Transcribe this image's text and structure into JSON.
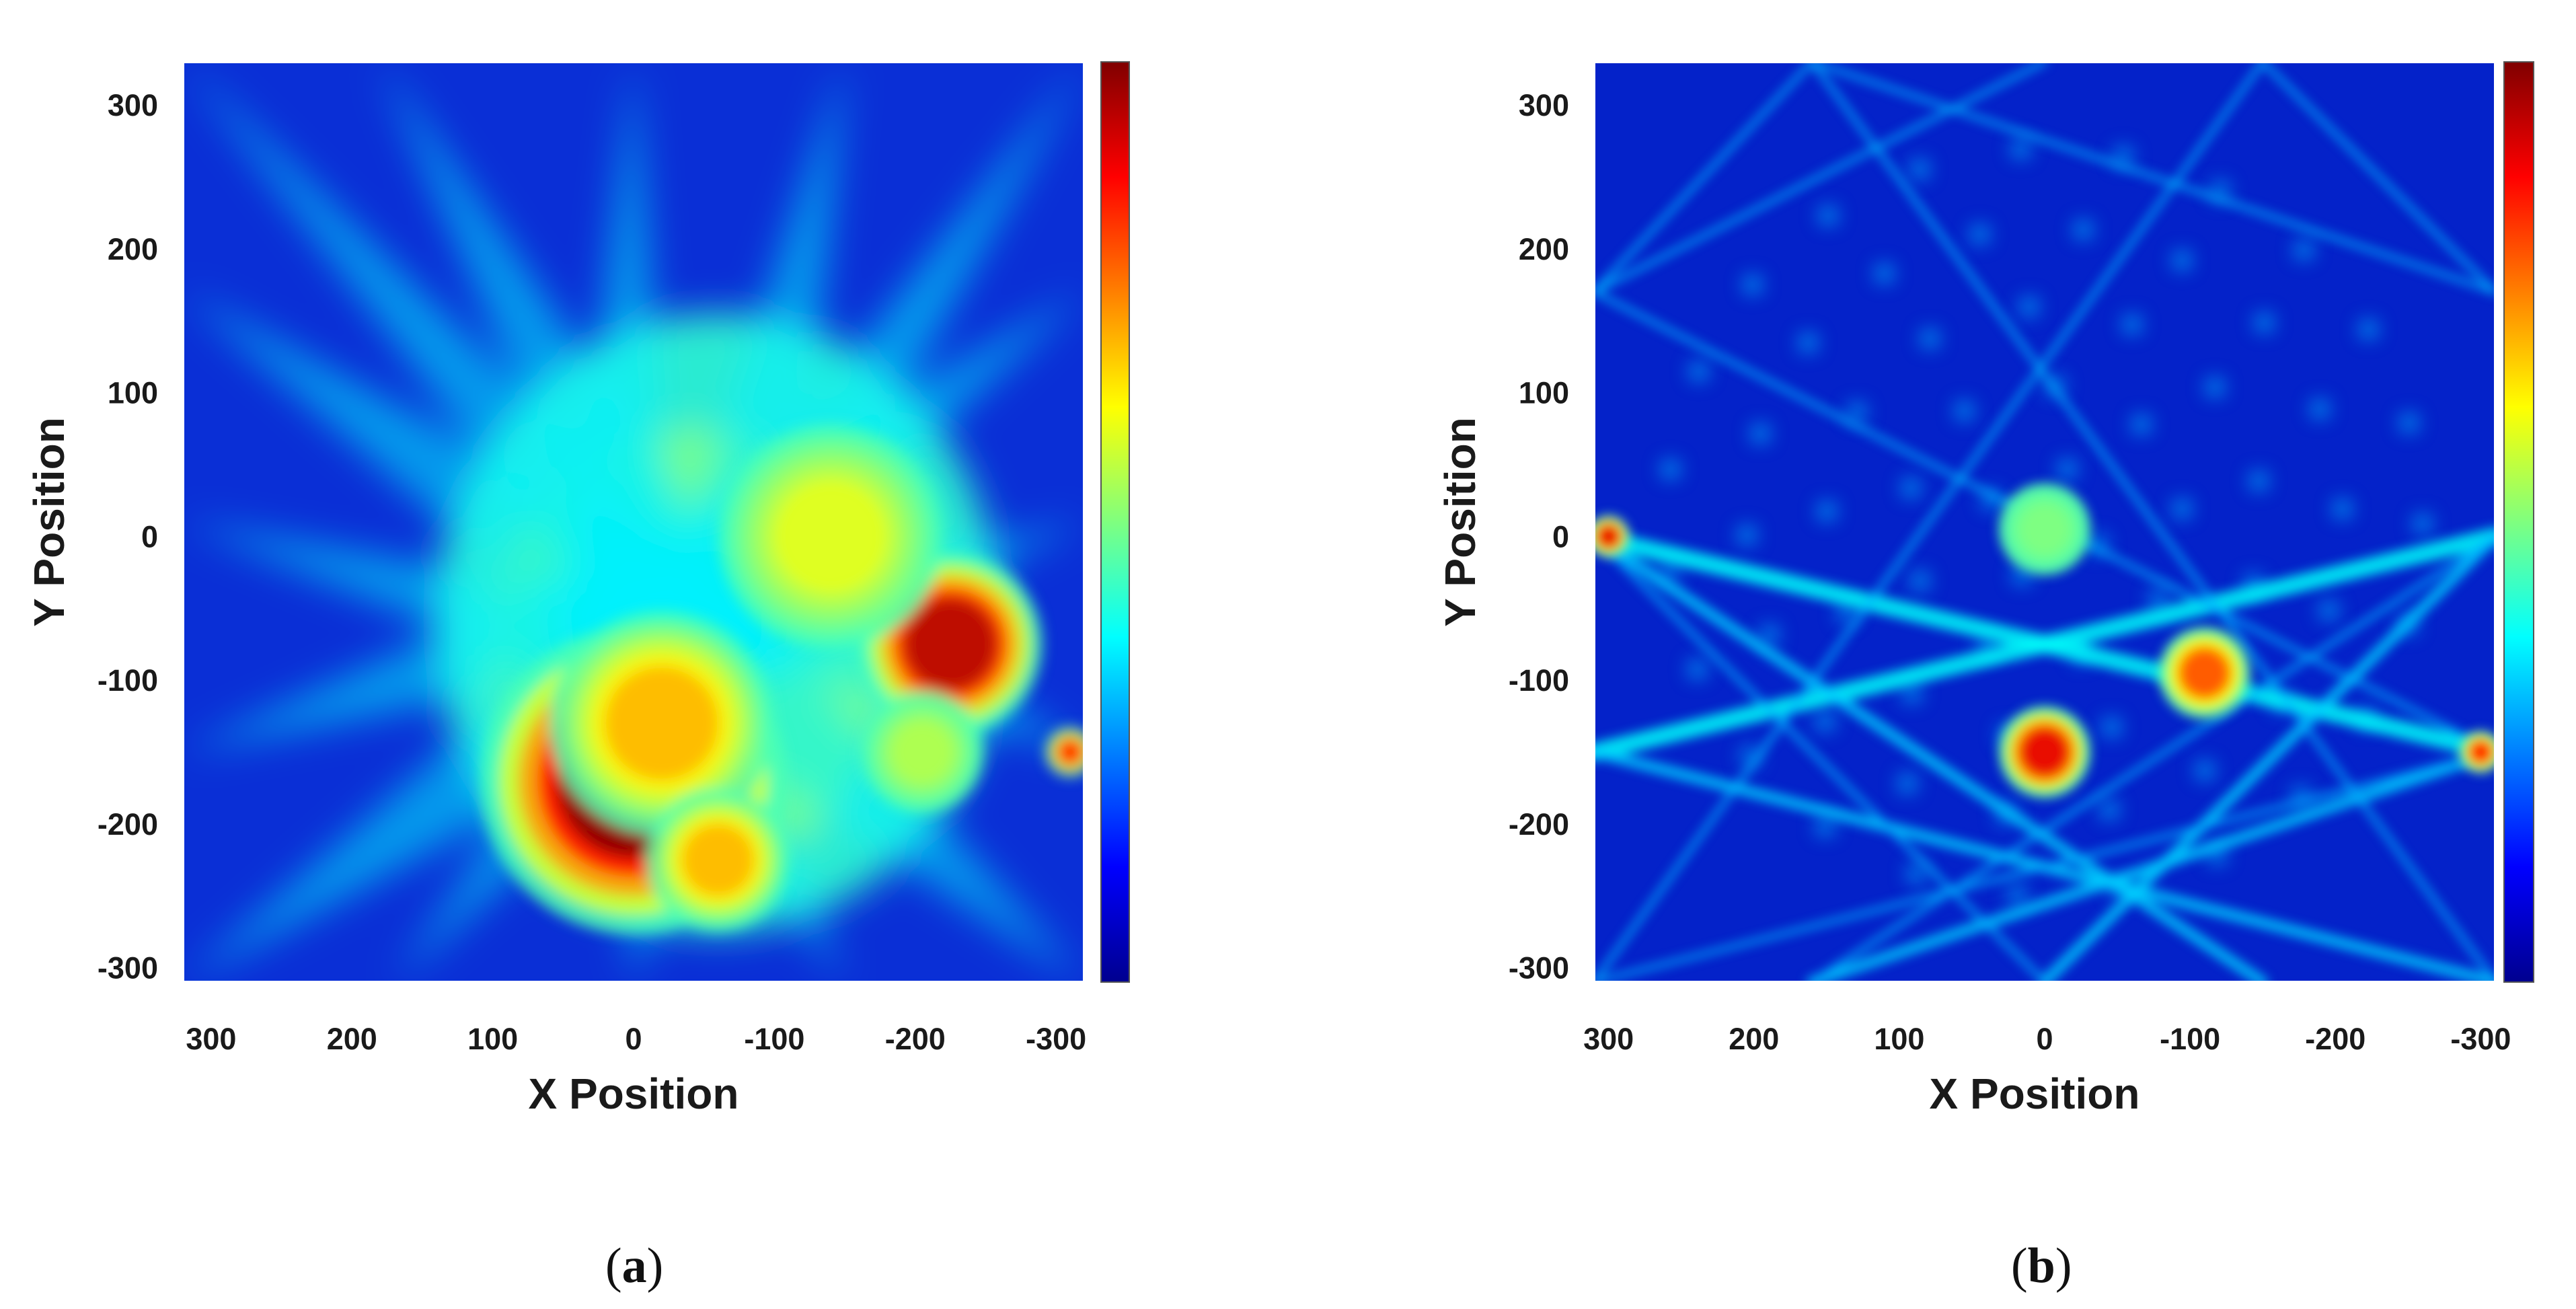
{
  "chart_data": [
    {
      "type": "heatmap",
      "panel_label": "a",
      "xlabel": "X Position",
      "ylabel": "Y Position",
      "x_ticks": [
        300,
        200,
        100,
        0,
        -100,
        -200,
        -300
      ],
      "y_ticks": [
        300,
        200,
        100,
        0,
        -100,
        -200,
        -300
      ],
      "xlim": [
        320,
        -320
      ],
      "ylim": [
        -310,
        330
      ],
      "x_reversed": true,
      "colormap": "jet",
      "colorbar": true,
      "colorbar_placement": "right",
      "grid": false,
      "hotspots": [
        {
          "x": 0,
          "y": -170,
          "intensity": 1.0,
          "spread": 75
        },
        {
          "x": -20,
          "y": -130,
          "intensity": 0.7,
          "spread": 55
        },
        {
          "x": -60,
          "y": -225,
          "intensity": 0.7,
          "spread": 35
        },
        {
          "x": -225,
          "y": -75,
          "intensity": 0.95,
          "spread": 45
        },
        {
          "x": -205,
          "y": -150,
          "intensity": 0.55,
          "spread": 30
        },
        {
          "x": -140,
          "y": 0,
          "intensity": 0.6,
          "spread": 55
        },
        {
          "x": -310,
          "y": -150,
          "intensity": 0.85,
          "spread": 12
        }
      ]
    },
    {
      "type": "heatmap",
      "panel_label": "b",
      "xlabel": "X Position",
      "ylabel": "Y Position",
      "x_ticks": [
        300,
        200,
        100,
        0,
        -100,
        -200,
        -300
      ],
      "y_ticks": [
        300,
        200,
        100,
        0,
        -100,
        -200,
        -300
      ],
      "xlim": [
        310,
        -310
      ],
      "ylim": [
        -310,
        330
      ],
      "x_reversed": true,
      "colormap": "jet",
      "colorbar": true,
      "colorbar_placement": "right",
      "grid": false,
      "hotspots": [
        {
          "x": 0,
          "y": -150,
          "intensity": 0.9,
          "spread": 22
        },
        {
          "x": -110,
          "y": -95,
          "intensity": 0.8,
          "spread": 22
        },
        {
          "x": 0,
          "y": 5,
          "intensity": 0.5,
          "spread": 22
        },
        {
          "x": 300,
          "y": 0,
          "intensity": 0.9,
          "spread": 10
        },
        {
          "x": -300,
          "y": -150,
          "intensity": 0.85,
          "spread": 10
        }
      ]
    }
  ],
  "captions": {
    "a": "a",
    "b": "b"
  },
  "colors": {
    "jet_low": "#00008f",
    "jet_mid": "#7fff7f",
    "jet_high": "#800000"
  }
}
